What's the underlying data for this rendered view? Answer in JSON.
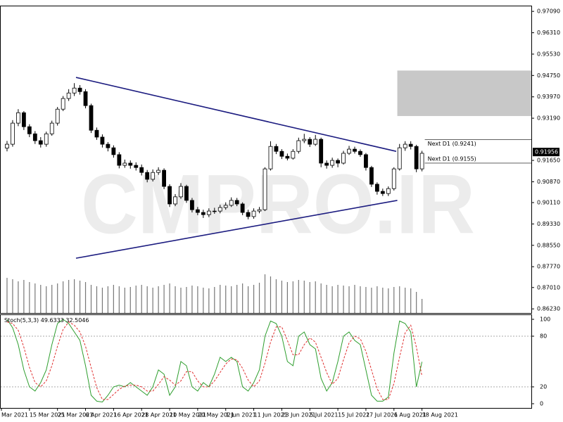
{
  "chart_data": [
    {
      "type": "candlestick",
      "watermark": "CMPRO.IR",
      "xlim": [
        -0.5,
        93.5
      ],
      "xticks": [
        {
          "value": -1,
          "label": "Mar 2021"
        },
        {
          "value": 4,
          "label": "15 Mar 2021"
        },
        {
          "value": 9,
          "label": "25 Mar 2021"
        },
        {
          "value": 14,
          "label": "6 Apr 2021"
        },
        {
          "value": 19,
          "label": "16 Apr 2021"
        },
        {
          "value": 24,
          "label": "28 Apr 2021"
        },
        {
          "value": 29,
          "label": "10 May 2021"
        },
        {
          "value": 34,
          "label": "20 May 2021"
        },
        {
          "value": 39,
          "label": "1 Jun 2021"
        },
        {
          "value": 44,
          "label": "11 Jun 2021"
        },
        {
          "value": 49,
          "label": "23 Jun 2021"
        },
        {
          "value": 54,
          "label": "5 Jul 2021"
        },
        {
          "value": 59,
          "label": "15 Jul 2021"
        },
        {
          "value": 64,
          "label": "27 Jul 2021"
        },
        {
          "value": 69,
          "label": "6 Aug 2021"
        },
        {
          "value": 74,
          "label": "18 Aug 2021"
        }
      ],
      "ylim": [
        0.8608,
        0.973
      ],
      "yticks": [
        {
          "value": 0.9709,
          "label": "0.97090"
        },
        {
          "value": 0.9631,
          "label": "0.96310"
        },
        {
          "value": 0.9553,
          "label": "0.95530"
        },
        {
          "value": 0.9475,
          "label": "0.94750"
        },
        {
          "value": 0.9397,
          "label": "0.93970"
        },
        {
          "value": 0.9319,
          "label": "0.93190"
        },
        {
          "value": 0.9165,
          "label": "0.91650"
        },
        {
          "value": 0.9087,
          "label": "0.90870"
        },
        {
          "value": 0.9011,
          "label": "0.90110"
        },
        {
          "value": 0.8933,
          "label": "0.89330"
        },
        {
          "value": 0.8855,
          "label": "0.88550"
        },
        {
          "value": 0.8777,
          "label": "0.87770"
        },
        {
          "value": 0.8701,
          "label": "0.87010"
        },
        {
          "value": 0.8623,
          "label": "0.86230"
        }
      ],
      "current_price": 0.91956,
      "up_color": "#ffffff",
      "down_color": "#000000",
      "outline_color": "#000000",
      "open": [
        0.921,
        0.9224,
        0.9301,
        0.9339,
        0.9288,
        0.9262,
        0.9237,
        0.9224,
        0.9262,
        0.9301,
        0.9352,
        0.9391,
        0.9411,
        0.9429,
        0.9416,
        0.9365,
        0.9275,
        0.925,
        0.9224,
        0.9211,
        0.9186,
        0.9147,
        0.9155,
        0.9147,
        0.9139,
        0.9121,
        0.9096,
        0.9121,
        0.9129,
        0.907,
        0.9006,
        0.9032,
        0.907,
        0.9019,
        0.8985,
        0.8975,
        0.8967,
        0.898,
        0.898,
        0.8993,
        0.9001,
        0.9019,
        0.9006,
        0.8975,
        0.896,
        0.898,
        0.8985,
        0.9134,
        0.9216,
        0.9198,
        0.918,
        0.9173,
        0.9198,
        0.9237,
        0.9242,
        0.9224,
        0.9242,
        0.9155,
        0.9147,
        0.9165,
        0.9155,
        0.9191,
        0.9206,
        0.9198,
        0.9186,
        0.9139,
        0.9078,
        0.9052,
        0.9044,
        0.9062,
        0.9134,
        0.9211,
        0.9224,
        0.9216,
        0.9134
      ],
      "high": [
        0.9236,
        0.9312,
        0.9352,
        0.9345,
        0.9297,
        0.9272,
        0.925,
        0.927,
        0.931,
        0.936,
        0.94,
        0.9425,
        0.9447,
        0.944,
        0.9425,
        0.9372,
        0.9285,
        0.926,
        0.9232,
        0.922,
        0.9195,
        0.9168,
        0.9165,
        0.9158,
        0.915,
        0.913,
        0.9132,
        0.914,
        0.9136,
        0.9078,
        0.9042,
        0.9082,
        0.9076,
        0.9028,
        0.8995,
        0.8985,
        0.899,
        0.8992,
        0.9003,
        0.9012,
        0.903,
        0.9028,
        0.9012,
        0.8985,
        0.899,
        0.8995,
        0.914,
        0.9235,
        0.9225,
        0.9206,
        0.919,
        0.9206,
        0.9248,
        0.9262,
        0.925,
        0.9258,
        0.9248,
        0.9165,
        0.9175,
        0.9172,
        0.92,
        0.9218,
        0.9215,
        0.9205,
        0.9192,
        0.9145,
        0.9085,
        0.9062,
        0.907,
        0.914,
        0.9225,
        0.9235,
        0.9235,
        0.9222,
        0.92
      ],
      "low": [
        0.9198,
        0.9215,
        0.929,
        0.9276,
        0.925,
        0.9225,
        0.9212,
        0.9215,
        0.9255,
        0.9292,
        0.9345,
        0.9382,
        0.94,
        0.9405,
        0.9355,
        0.9265,
        0.924,
        0.9212,
        0.9198,
        0.9175,
        0.9136,
        0.9138,
        0.9135,
        0.9128,
        0.911,
        0.9085,
        0.9088,
        0.9112,
        0.906,
        0.8995,
        0.8998,
        0.9025,
        0.901,
        0.8975,
        0.8965,
        0.8955,
        0.8958,
        0.897,
        0.8972,
        0.8985,
        0.8995,
        0.8998,
        0.8965,
        0.895,
        0.8952,
        0.8972,
        0.898,
        0.9128,
        0.9188,
        0.917,
        0.9165,
        0.9168,
        0.919,
        0.9228,
        0.9214,
        0.9218,
        0.914,
        0.9135,
        0.9138,
        0.914,
        0.915,
        0.9185,
        0.919,
        0.9178,
        0.9128,
        0.9068,
        0.904,
        0.9035,
        0.9035,
        0.9055,
        0.9128,
        0.92,
        0.9205,
        0.9122,
        0.9125
      ],
      "close": [
        0.9224,
        0.9301,
        0.9339,
        0.9288,
        0.9262,
        0.9237,
        0.9224,
        0.9262,
        0.9301,
        0.9352,
        0.9391,
        0.9411,
        0.9429,
        0.9416,
        0.9365,
        0.9275,
        0.925,
        0.9224,
        0.9211,
        0.9186,
        0.9147,
        0.9155,
        0.9147,
        0.9139,
        0.9121,
        0.9096,
        0.9121,
        0.9129,
        0.907,
        0.9006,
        0.9032,
        0.907,
        0.9019,
        0.8985,
        0.8975,
        0.8967,
        0.898,
        0.898,
        0.8993,
        0.9001,
        0.9019,
        0.9006,
        0.8975,
        0.896,
        0.898,
        0.8985,
        0.9134,
        0.9216,
        0.9198,
        0.918,
        0.9173,
        0.9198,
        0.9237,
        0.9242,
        0.9224,
        0.9242,
        0.9155,
        0.9147,
        0.9165,
        0.9155,
        0.9191,
        0.9206,
        0.9198,
        0.9186,
        0.9139,
        0.9078,
        0.9052,
        0.9044,
        0.9062,
        0.9134,
        0.9211,
        0.9224,
        0.9216,
        0.9134,
        0.9191
      ],
      "volume": [
        50,
        48,
        45,
        47,
        44,
        42,
        40,
        38,
        40,
        42,
        45,
        47,
        48,
        46,
        44,
        40,
        38,
        36,
        38,
        40,
        38,
        36,
        37,
        39,
        40,
        38,
        36,
        38,
        40,
        42,
        38,
        36,
        37,
        39,
        38,
        36,
        35,
        37,
        40,
        39,
        38,
        40,
        42,
        38,
        40,
        43,
        55,
        52,
        48,
        46,
        44,
        45,
        47,
        46,
        44,
        45,
        42,
        40,
        38,
        40,
        39,
        38,
        40,
        38,
        37,
        36,
        38,
        36,
        35,
        37,
        38,
        36,
        35,
        30,
        20
      ],
      "volume_color": "#777777",
      "trendlines": [
        {
          "color": "#1c1c80",
          "x": [
            12.3,
            69.4
          ],
          "y": [
            0.9468,
            0.9198
          ]
        },
        {
          "color": "#1c1c80",
          "x": [
            12.3,
            69.6
          ],
          "y": [
            0.8808,
            0.9019
          ]
        }
      ],
      "zone": {
        "x0": 69.6,
        "ylim": [
          0.9327,
          0.9493
        ],
        "color": "#c8c8c8"
      },
      "levels": [
        {
          "value": 0.9241,
          "label": "Next D1 (0.9241)"
        },
        {
          "value": 0.9155,
          "label": "Next D1 (0.9155)"
        }
      ]
    },
    {
      "type": "line",
      "indicator": "Stoch(5,3,3)",
      "ylim": [
        -5,
        105
      ],
      "yticks": [
        100,
        80,
        20,
        0
      ],
      "series": [
        {
          "color": "#2e9e2e",
          "dash": false,
          "values": [
            100,
            90,
            70,
            40,
            20,
            15,
            25,
            40,
            70,
            95,
            100,
            95,
            85,
            75,
            45,
            10,
            3,
            2,
            10,
            20,
            22,
            20,
            25,
            20,
            15,
            10,
            20,
            40,
            35,
            10,
            20,
            50,
            45,
            20,
            15,
            25,
            20,
            35,
            55,
            50,
            55,
            50,
            20,
            15,
            25,
            40,
            80,
            98,
            95,
            80,
            50,
            45,
            80,
            85,
            70,
            65,
            30,
            15,
            25,
            50,
            80,
            85,
            75,
            70,
            40,
            10,
            3,
            3,
            8,
            60,
            98,
            95,
            85,
            20,
            49.6333
          ]
        },
        {
          "color": "#e03030",
          "dash": true,
          "values": [
            97,
            95,
            87,
            67,
            43,
            25,
            20,
            27,
            45,
            68,
            88,
            97,
            93,
            85,
            68,
            43,
            19,
            5,
            5,
            11,
            17,
            21,
            22,
            22,
            20,
            15,
            15,
            23,
            32,
            28,
            22,
            27,
            38,
            38,
            27,
            20,
            20,
            27,
            37,
            47,
            53,
            52,
            42,
            28,
            20,
            27,
            48,
            73,
            91,
            91,
            75,
            58,
            58,
            70,
            78,
            73,
            55,
            37,
            23,
            30,
            52,
            72,
            80,
            77,
            62,
            40,
            18,
            5,
            5,
            24,
            55,
            84,
            93,
            67,
            32.5046
          ]
        }
      ]
    }
  ]
}
